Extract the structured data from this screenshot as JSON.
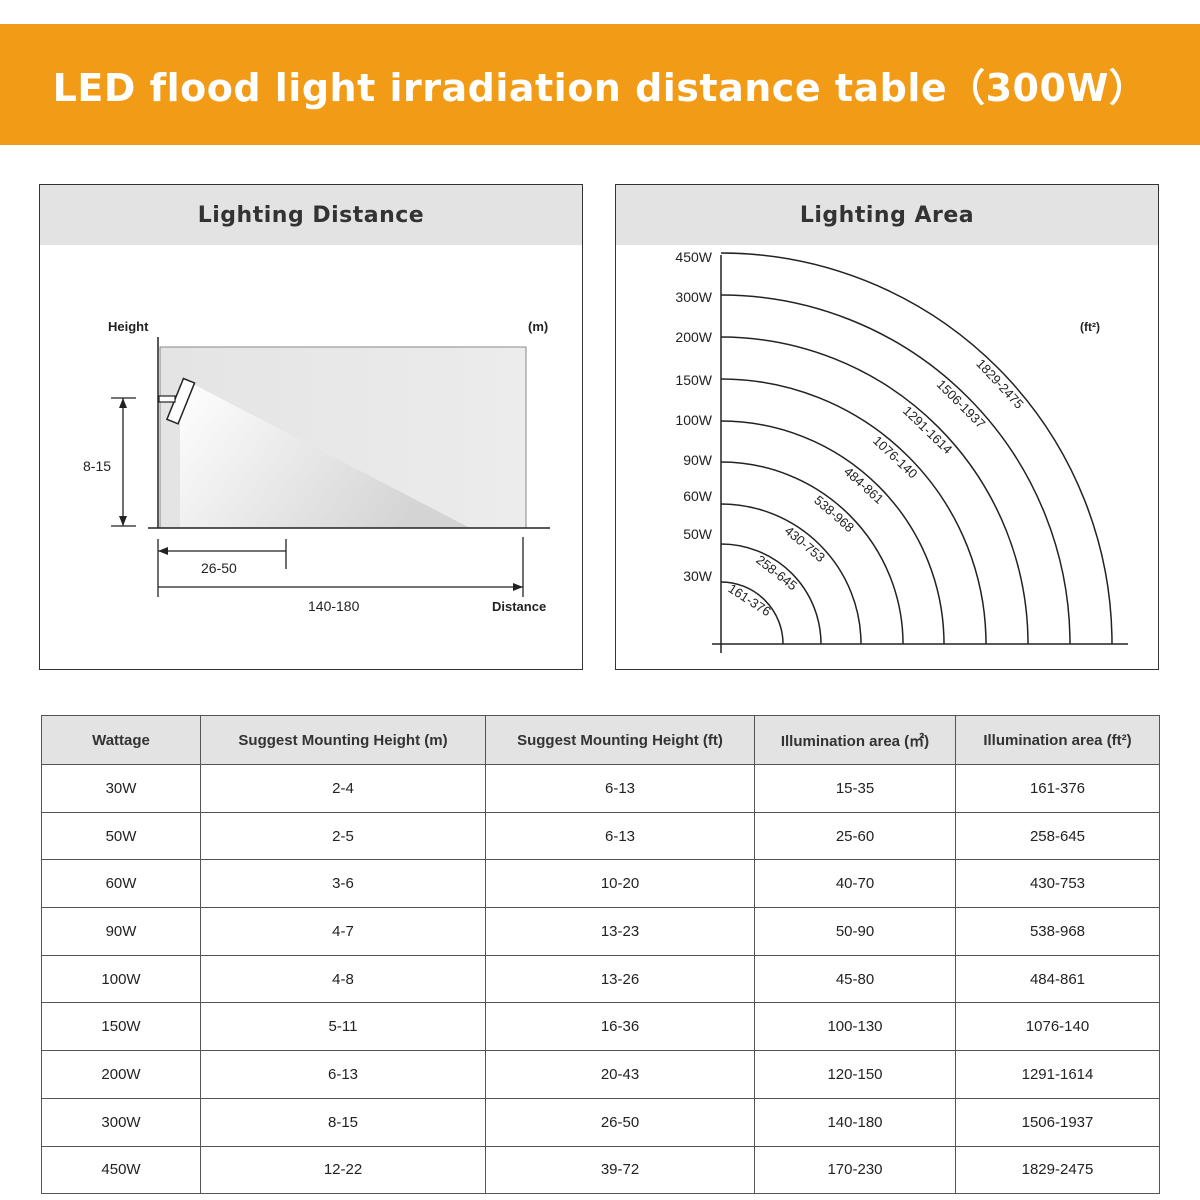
{
  "title": "LED flood light irradiation distance table（300W）",
  "distance_panel": {
    "heading": "Lighting Distance",
    "height_label": "Height",
    "unit_label": "(m)",
    "height_range": "8-15",
    "near_distance": "26-50",
    "far_distance": "140-180",
    "distance_label": "Distance"
  },
  "area_panel": {
    "heading": "Lighting Area",
    "unit_label": "(ft²)",
    "rings": [
      {
        "wattage": "30W",
        "area": "161-376"
      },
      {
        "wattage": "50W",
        "area": "258-645"
      },
      {
        "wattage": "60W",
        "area": "430-753"
      },
      {
        "wattage": "90W",
        "area": "538-968"
      },
      {
        "wattage": "100W",
        "area": "484-861"
      },
      {
        "wattage": "150W",
        "area": "1076-140"
      },
      {
        "wattage": "200W",
        "area": "1291-1614"
      },
      {
        "wattage": "300W",
        "area": "1506-1937"
      },
      {
        "wattage": "450W",
        "area": "1829-2475"
      }
    ]
  },
  "table": {
    "headers": [
      "Wattage",
      "Suggest Mounting Height (m)",
      "Suggest Mounting Height (ft)",
      "Illumination area (㎡)",
      "Illumination area (ft²)"
    ],
    "rows": [
      [
        "30W",
        "2-4",
        "6-13",
        "15-35",
        "161-376"
      ],
      [
        "50W",
        "2-5",
        "6-13",
        "25-60",
        "258-645"
      ],
      [
        "60W",
        "3-6",
        "10-20",
        "40-70",
        "430-753"
      ],
      [
        "90W",
        "4-7",
        "13-23",
        "50-90",
        "538-968"
      ],
      [
        "100W",
        "4-8",
        "13-26",
        "45-80",
        "484-861"
      ],
      [
        "150W",
        "5-11",
        "16-36",
        "100-130",
        "1076-140"
      ],
      [
        "200W",
        "6-13",
        "20-43",
        "120-150",
        "1291-1614"
      ],
      [
        "300W",
        "8-15",
        "26-50",
        "140-180",
        "1506-1937"
      ],
      [
        "450W",
        "12-22",
        "39-72",
        "170-230",
        "1829-2475"
      ]
    ]
  },
  "colors": {
    "banner": "#f29b16",
    "header_bg": "#e3e3e3"
  }
}
